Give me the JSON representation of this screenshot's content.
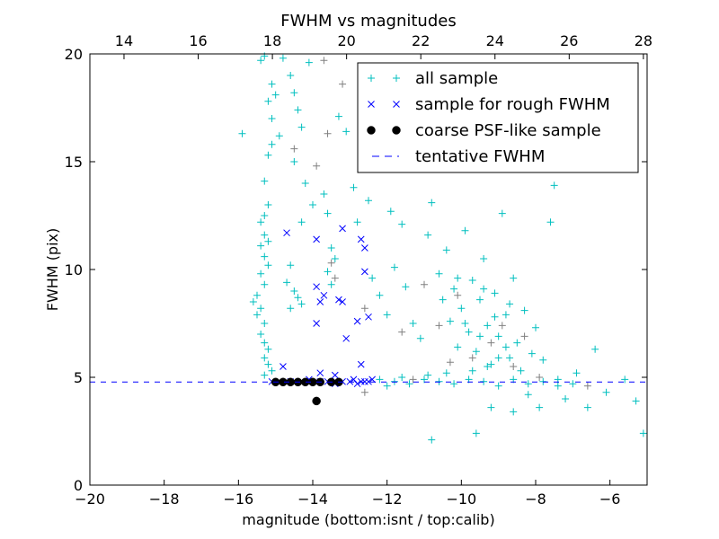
{
  "chart_data": {
    "type": "scatter",
    "title": "FWHM vs magnitudes",
    "xlabel": "magnitude (bottom:isnt / top:calib)",
    "ylabel": "FWHM (pix)",
    "xlim": [
      -20,
      -5
    ],
    "ylim": [
      0,
      20
    ],
    "top_xlim": [
      13.08,
      28.1
    ],
    "xticks": [
      -20,
      -18,
      -16,
      -14,
      -12,
      -10,
      -8,
      -6
    ],
    "xtick_labels": [
      "−20",
      "−18",
      "−16",
      "−14",
      "−12",
      "−10",
      "−8",
      "−6"
    ],
    "yticks": [
      0,
      5,
      10,
      15,
      20
    ],
    "ytick_labels": [
      "0",
      "5",
      "10",
      "15",
      "20"
    ],
    "top_xticks": [
      14,
      16,
      18,
      20,
      22,
      24,
      26,
      28
    ],
    "top_xtick_labels": [
      "14",
      "16",
      "18",
      "20",
      "22",
      "24",
      "26",
      "28"
    ],
    "legend_position": "top-right",
    "legend": [
      "all sample",
      "sample for rough FWHM",
      "coarse PSF-like sample",
      "tentative FWHM"
    ],
    "tentative_fwhm": 4.78,
    "series": [
      {
        "name": "all sample",
        "marker": "+",
        "color": "#00bfbf",
        "points": [
          [
            -15.9,
            16.3
          ],
          [
            -15.4,
            19.7
          ],
          [
            -15.3,
            19.9
          ],
          [
            -15.1,
            18.6
          ],
          [
            -15.0,
            18.1
          ],
          [
            -15.2,
            17.8
          ],
          [
            -15.1,
            17.0
          ],
          [
            -14.9,
            16.2
          ],
          [
            -15.1,
            15.8
          ],
          [
            -15.2,
            15.3
          ],
          [
            -15.3,
            14.1
          ],
          [
            -15.2,
            13.0
          ],
          [
            -15.3,
            12.5
          ],
          [
            -15.4,
            12.2
          ],
          [
            -15.3,
            11.6
          ],
          [
            -15.2,
            11.3
          ],
          [
            -15.4,
            11.1
          ],
          [
            -15.3,
            10.6
          ],
          [
            -15.2,
            10.2
          ],
          [
            -15.4,
            9.8
          ],
          [
            -15.3,
            9.3
          ],
          [
            -15.5,
            8.8
          ],
          [
            -15.6,
            8.5
          ],
          [
            -15.4,
            8.2
          ],
          [
            -15.5,
            7.9
          ],
          [
            -15.3,
            7.5
          ],
          [
            -15.4,
            7.0
          ],
          [
            -15.3,
            6.6
          ],
          [
            -15.2,
            6.3
          ],
          [
            -15.3,
            5.9
          ],
          [
            -15.2,
            5.6
          ],
          [
            -15.1,
            5.3
          ],
          [
            -15.3,
            5.1
          ],
          [
            -14.8,
            19.8
          ],
          [
            -14.6,
            19.0
          ],
          [
            -14.5,
            18.2
          ],
          [
            -14.4,
            17.4
          ],
          [
            -14.3,
            16.6
          ],
          [
            -14.1,
            19.6
          ],
          [
            -14.5,
            15.0
          ],
          [
            -14.2,
            14.0
          ],
          [
            -14.0,
            13.0
          ],
          [
            -14.3,
            12.2
          ],
          [
            -14.6,
            10.2
          ],
          [
            -14.7,
            9.4
          ],
          [
            -14.5,
            9.0
          ],
          [
            -14.4,
            8.7
          ],
          [
            -14.6,
            8.2
          ],
          [
            -14.3,
            8.4
          ],
          [
            -13.7,
            13.5
          ],
          [
            -13.6,
            12.6
          ],
          [
            -13.5,
            11.0
          ],
          [
            -13.4,
            10.5
          ],
          [
            -13.6,
            9.9
          ],
          [
            -13.5,
            9.3
          ],
          [
            -13.3,
            17.1
          ],
          [
            -13.1,
            16.4
          ],
          [
            -12.9,
            13.8
          ],
          [
            -12.8,
            12.2
          ],
          [
            -12.5,
            13.2
          ],
          [
            -12.4,
            9.6
          ],
          [
            -12.2,
            8.8
          ],
          [
            -12.0,
            7.9
          ],
          [
            -11.9,
            12.7
          ],
          [
            -11.6,
            12.1
          ],
          [
            -11.8,
            10.1
          ],
          [
            -11.5,
            9.2
          ],
          [
            -11.3,
            7.5
          ],
          [
            -11.1,
            6.8
          ],
          [
            -10.9,
            11.6
          ],
          [
            -10.8,
            13.1
          ],
          [
            -10.6,
            9.8
          ],
          [
            -10.5,
            8.6
          ],
          [
            -10.4,
            10.9
          ],
          [
            -10.3,
            7.6
          ],
          [
            -10.2,
            9.1
          ],
          [
            -10.1,
            6.4
          ],
          [
            -10.0,
            8.2
          ],
          [
            -9.9,
            11.8
          ],
          [
            -9.8,
            7.1
          ],
          [
            -9.7,
            9.5
          ],
          [
            -9.6,
            6.2
          ],
          [
            -9.5,
            8.6
          ],
          [
            -9.4,
            10.5
          ],
          [
            -9.3,
            7.4
          ],
          [
            -9.2,
            5.6
          ],
          [
            -9.1,
            8.9
          ],
          [
            -9.0,
            6.9
          ],
          [
            -8.9,
            12.6
          ],
          [
            -8.8,
            7.9
          ],
          [
            -8.7,
            5.9
          ],
          [
            -8.6,
            9.6
          ],
          [
            -8.5,
            6.6
          ],
          [
            -8.4,
            5.3
          ],
          [
            -8.3,
            8.1
          ],
          [
            -8.2,
            4.2
          ],
          [
            -8.1,
            6.1
          ],
          [
            -8.0,
            7.3
          ],
          [
            -7.9,
            3.6
          ],
          [
            -7.8,
            5.8
          ],
          [
            -7.6,
            12.2
          ],
          [
            -7.5,
            13.9
          ],
          [
            -7.4,
            4.6
          ],
          [
            -7.2,
            4.0
          ],
          [
            -6.9,
            5.2
          ],
          [
            -6.6,
            3.6
          ],
          [
            -6.4,
            6.3
          ],
          [
            -6.1,
            4.3
          ],
          [
            -5.6,
            4.9
          ],
          [
            -5.3,
            3.9
          ],
          [
            -5.1,
            2.4
          ],
          [
            -10.8,
            2.1
          ],
          [
            -9.6,
            2.4
          ],
          [
            -9.2,
            3.6
          ],
          [
            -8.6,
            3.4
          ],
          [
            -11.8,
            4.8
          ],
          [
            -11.4,
            4.7
          ],
          [
            -11.0,
            4.9
          ],
          [
            -10.6,
            4.8
          ],
          [
            -10.2,
            4.7
          ],
          [
            -9.8,
            4.9
          ],
          [
            -9.4,
            4.8
          ],
          [
            -9.0,
            4.6
          ],
          [
            -8.6,
            4.9
          ],
          [
            -8.2,
            4.7
          ],
          [
            -7.8,
            4.8
          ],
          [
            -7.4,
            4.9
          ],
          [
            -7.0,
            4.7
          ],
          [
            -12.2,
            4.9
          ],
          [
            -12.0,
            4.6
          ],
          [
            -11.6,
            5.0
          ],
          [
            -10.9,
            5.1
          ],
          [
            -10.4,
            5.2
          ],
          [
            -9.7,
            5.3
          ],
          [
            -9.3,
            5.5
          ],
          [
            -9.0,
            5.9
          ],
          [
            -8.8,
            6.4
          ],
          [
            -9.5,
            6.9
          ],
          [
            -9.9,
            7.5
          ],
          [
            -9.1,
            7.8
          ],
          [
            -8.7,
            8.4
          ],
          [
            -9.4,
            9.1
          ],
          [
            -10.1,
            9.6
          ]
        ]
      },
      {
        "name": "",
        "marker": "+",
        "color": "#808080",
        "points": [
          [
            -13.6,
            16.3
          ],
          [
            -13.7,
            19.7
          ],
          [
            -13.2,
            18.6
          ],
          [
            -14.5,
            15.6
          ],
          [
            -13.9,
            14.8
          ],
          [
            -13.5,
            10.3
          ],
          [
            -13.4,
            9.6
          ],
          [
            -12.6,
            8.2
          ],
          [
            -11.6,
            7.1
          ],
          [
            -11.0,
            9.3
          ],
          [
            -10.6,
            7.4
          ],
          [
            -10.1,
            8.8
          ],
          [
            -9.7,
            5.9
          ],
          [
            -9.2,
            6.6
          ],
          [
            -8.9,
            7.4
          ],
          [
            -8.6,
            5.5
          ],
          [
            -8.3,
            6.9
          ],
          [
            -10.3,
            5.7
          ],
          [
            -11.3,
            4.9
          ],
          [
            -12.6,
            4.3
          ],
          [
            -7.9,
            5.0
          ],
          [
            -6.6,
            4.6
          ]
        ]
      },
      {
        "name": "sample for rough FWHM",
        "marker": "x",
        "color": "#0000ff",
        "points": [
          [
            -14.7,
            11.7
          ],
          [
            -13.9,
            11.4
          ],
          [
            -13.2,
            11.9
          ],
          [
            -12.7,
            11.4
          ],
          [
            -12.6,
            11.0
          ],
          [
            -12.6,
            9.9
          ],
          [
            -13.9,
            9.2
          ],
          [
            -13.7,
            8.8
          ],
          [
            -13.8,
            8.5
          ],
          [
            -13.3,
            8.6
          ],
          [
            -13.2,
            8.5
          ],
          [
            -12.5,
            7.8
          ],
          [
            -12.8,
            7.6
          ],
          [
            -13.9,
            7.5
          ],
          [
            -13.1,
            6.8
          ],
          [
            -12.7,
            5.6
          ],
          [
            -14.8,
            5.5
          ],
          [
            -13.8,
            5.2
          ],
          [
            -13.4,
            5.1
          ],
          [
            -15.1,
            4.8
          ],
          [
            -14.9,
            4.8
          ],
          [
            -14.6,
            4.8
          ],
          [
            -14.3,
            4.8
          ],
          [
            -14.1,
            4.9
          ],
          [
            -13.8,
            4.8
          ],
          [
            -13.6,
            4.8
          ],
          [
            -13.4,
            4.7
          ],
          [
            -13.2,
            4.8
          ],
          [
            -13.0,
            4.8
          ],
          [
            -12.9,
            4.9
          ],
          [
            -12.8,
            4.7
          ],
          [
            -12.7,
            4.8
          ],
          [
            -12.6,
            4.8
          ],
          [
            -12.5,
            4.8
          ],
          [
            -12.4,
            4.9
          ]
        ]
      },
      {
        "name": "coarse PSF-like sample",
        "marker": "o",
        "color": "#000000",
        "points": [
          [
            -15.0,
            4.78
          ],
          [
            -14.8,
            4.78
          ],
          [
            -14.6,
            4.78
          ],
          [
            -14.4,
            4.78
          ],
          [
            -14.2,
            4.78
          ],
          [
            -14.0,
            4.78
          ],
          [
            -13.8,
            4.78
          ],
          [
            -13.5,
            4.78
          ],
          [
            -13.3,
            4.78
          ],
          [
            -13.9,
            3.9
          ]
        ]
      }
    ]
  }
}
